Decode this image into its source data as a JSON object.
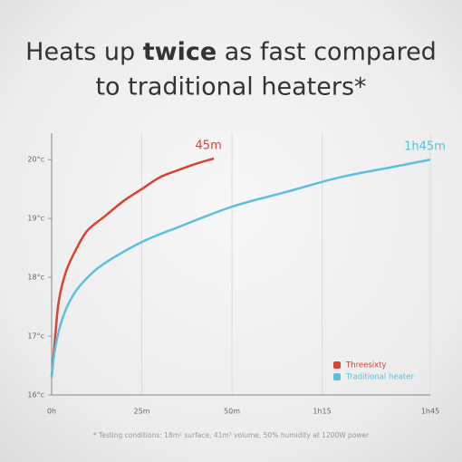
{
  "chart_data": {
    "type": "line",
    "title": {
      "start": "Heats up",
      "bold": "twice",
      "rest": "as fast compared",
      "line2": "to traditional heaters*"
    },
    "xlim": [
      0,
      105
    ],
    "xticks": [
      {
        "value": 0,
        "label": "0h"
      },
      {
        "value": 25,
        "label": "25m"
      },
      {
        "value": 50,
        "label": "50m"
      },
      {
        "value": 75,
        "label": "1h15"
      },
      {
        "value": 105,
        "label": "1h45"
      }
    ],
    "ylim": [
      16,
      20.45
    ],
    "yticks": [
      {
        "value": 16,
        "label": "16°c"
      },
      {
        "value": 17,
        "label": "17°c"
      },
      {
        "value": 18,
        "label": "18°c"
      },
      {
        "value": 19,
        "label": "19°c"
      },
      {
        "value": 20,
        "label": "20°c"
      }
    ],
    "grid": true,
    "legend": "lower right",
    "series": [
      {
        "name": "Threesixty",
        "color": "#d9432f",
        "end_label": "45m",
        "x": [
          0,
          1,
          2,
          4,
          7,
          10,
          15,
          20,
          25,
          30,
          35,
          40,
          45
        ],
        "values": [
          16.3,
          17.0,
          17.6,
          18.1,
          18.5,
          18.8,
          19.05,
          19.3,
          19.5,
          19.7,
          19.82,
          19.93,
          20.02
        ]
      },
      {
        "name": "Traditional heater",
        "color": "#5bc0de",
        "end_label": "1h45m",
        "x": [
          0,
          1,
          3,
          6,
          10,
          15,
          25,
          35,
          50,
          65,
          80,
          95,
          105
        ],
        "values": [
          16.3,
          16.8,
          17.3,
          17.7,
          18.0,
          18.25,
          18.6,
          18.85,
          19.2,
          19.45,
          19.7,
          19.88,
          20.0
        ]
      }
    ],
    "footnote": "* Testing conditions: 18m² surface, 41m³ volume, 50% humidity at 1200W power"
  }
}
